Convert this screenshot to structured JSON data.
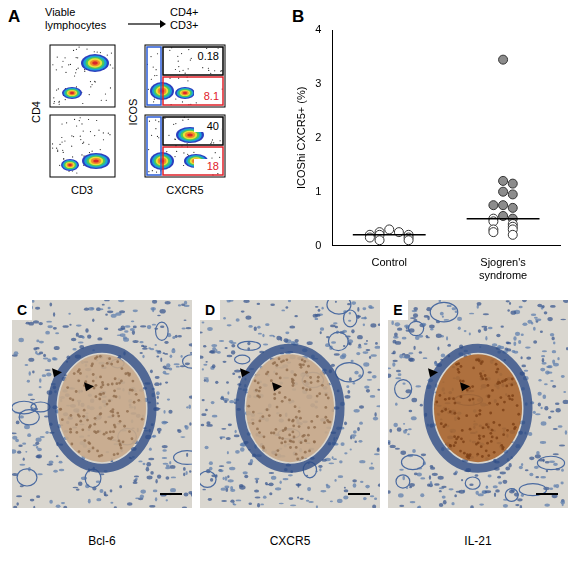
{
  "chart_data": {
    "panel": "B",
    "type": "scatter",
    "y_label": "ICOShi CXCR5+ (%)",
    "categories": [
      "Control",
      "Sjogren's syndrome"
    ],
    "values": [
      [
        0.3,
        0.25,
        0.25,
        0.2,
        0.2,
        0.2,
        0.15,
        0.15,
        0.1,
        0.1
      ],
      [
        3.45,
        1.2,
        1.15,
        1.0,
        0.95,
        0.75,
        0.7,
        0.75,
        0.55,
        0.5,
        0.5,
        0.45,
        0.4,
        0.35,
        0.3,
        0.3,
        0.25,
        0.2
      ]
    ],
    "colors": [
      [
        "#ffffff",
        "#ffffff",
        "#ffffff",
        "#ffffff",
        "#ffffff",
        "#ffffff",
        "#ffffff",
        "#ffffff",
        "#ffffff",
        "#ffffff"
      ],
      [
        "#8c8c8c",
        "#8c8c8c",
        "#8c8c8c",
        "#8c8c8c",
        "#8c8c8c",
        "#8c8c8c",
        "#8c8c8c",
        "#8c8c8c",
        "#8c8c8c",
        "#8c8c8c",
        "#ffffff",
        "#ffffff",
        "#ffffff",
        "#ffffff",
        "#ffffff",
        "#ffffff",
        "#ffffff",
        "#ffffff"
      ]
    ],
    "medians": [
      0.2,
      0.5
    ],
    "ylim": [
      0,
      4
    ],
    "yticks": [
      0,
      1,
      2,
      3,
      4
    ],
    "grid": false,
    "marker": "circle"
  },
  "panel_A": {
    "label": "A",
    "left_title": "Viable lymphocytes",
    "right_title": "CD4+ CD3+",
    "left_x_label": "CD3",
    "left_y_label": "CD4",
    "right_x_label": "CXCR5",
    "right_y_label": "ICOS",
    "gate_rows": [
      [
        {
          "label": "0.18",
          "color": "#000000"
        },
        {
          "label": "8.1",
          "color": "#e0202a"
        }
      ],
      [
        {
          "label": "40",
          "color": "#000000"
        },
        {
          "label": "18",
          "color": "#e0202a"
        }
      ]
    ]
  },
  "panels_histology": [
    {
      "label": "C",
      "caption": "Bcl-6"
    },
    {
      "label": "D",
      "caption": "CXCR5"
    },
    {
      "label": "E",
      "caption": "IL-21"
    }
  ]
}
